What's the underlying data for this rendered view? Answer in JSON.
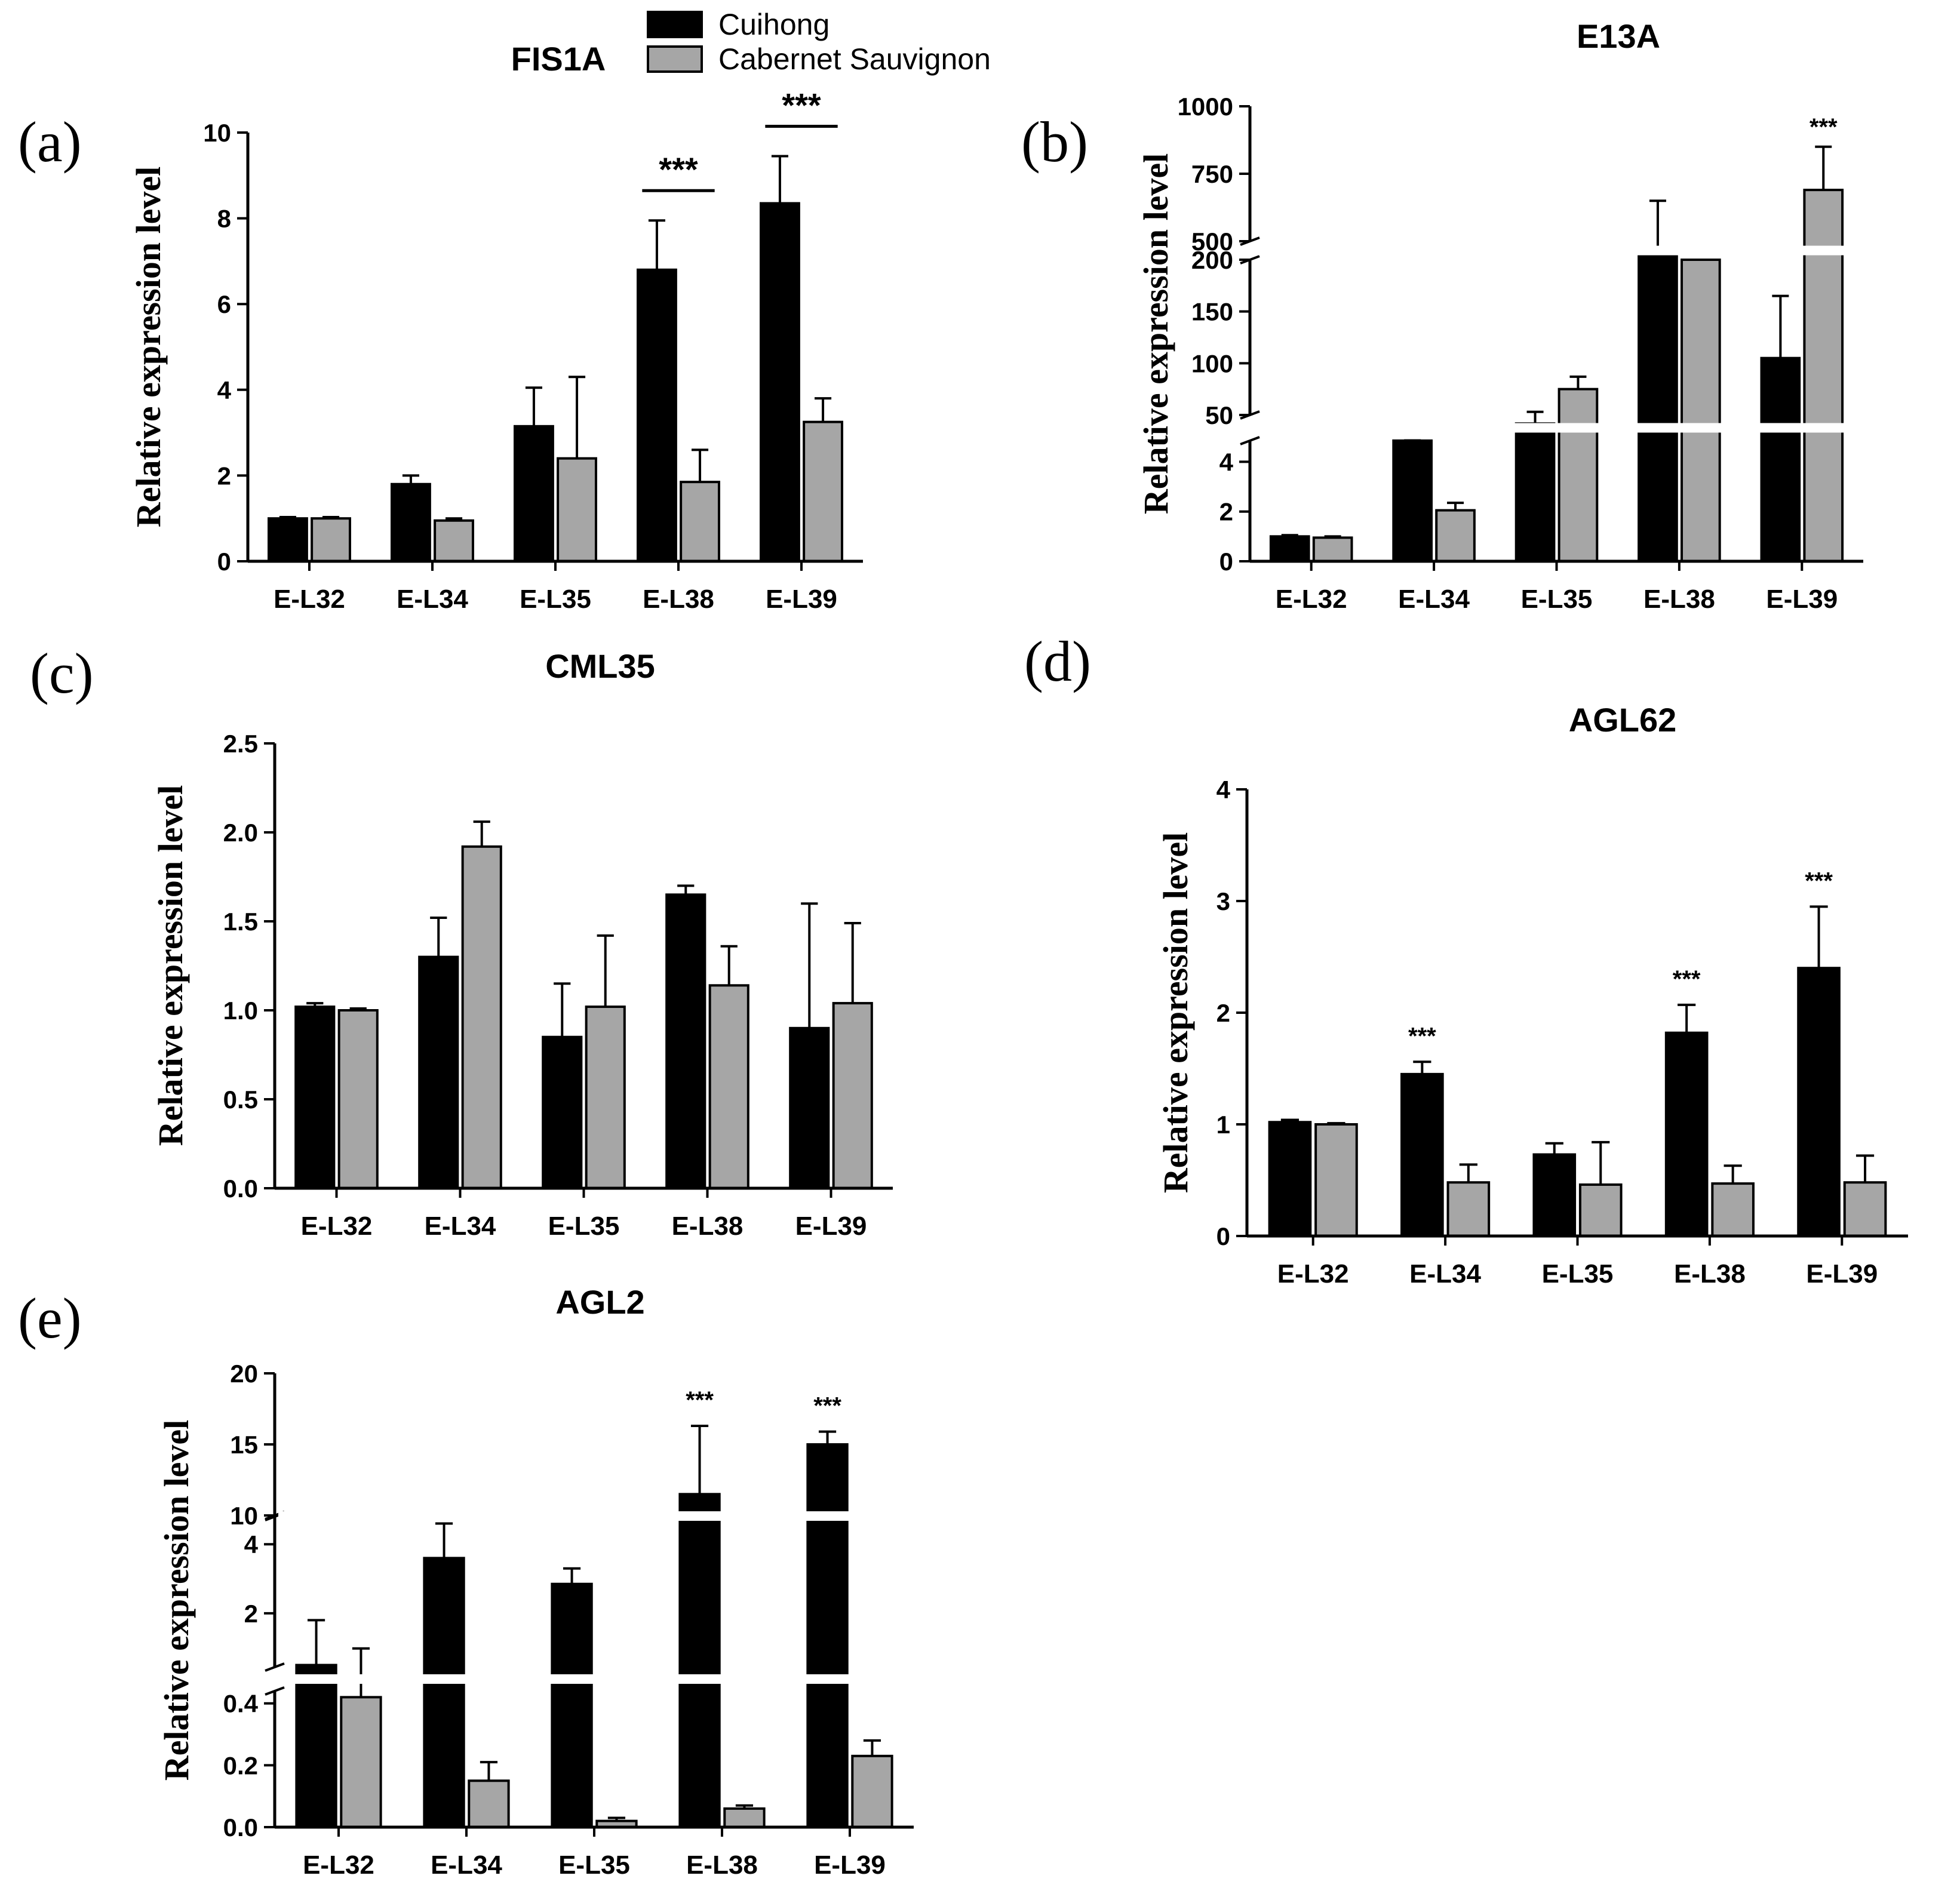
{
  "legend": {
    "series": [
      {
        "name": "Cuihong",
        "color": "#000000"
      },
      {
        "name": "Cabernet Sauvignon",
        "color": "#a6a6a6"
      }
    ]
  },
  "chart_data": [
    {
      "panel": "(a)",
      "type": "bar",
      "title": "FIS1A",
      "ylabel": "Relative expression level",
      "categories": [
        "E-L32",
        "E-L34",
        "E-L35",
        "E-L38",
        "E-L39"
      ],
      "ylim": [
        0,
        10
      ],
      "yticks": [
        0,
        2,
        4,
        6,
        8,
        10
      ],
      "series": [
        {
          "name": "Cuihong",
          "values": [
            1.0,
            1.8,
            3.15,
            6.8,
            8.35
          ],
          "errors": [
            0.03,
            0.2,
            0.9,
            1.15,
            1.1
          ]
        },
        {
          "name": "Cabernet Sauvignon",
          "values": [
            1.0,
            0.95,
            2.4,
            1.85,
            3.25
          ],
          "errors": [
            0.03,
            0.05,
            1.9,
            0.75,
            0.55
          ]
        }
      ],
      "annotations": [
        {
          "category": "E-L38",
          "text": "***",
          "style": "bracket"
        },
        {
          "category": "E-L39",
          "text": "***",
          "style": "bracket"
        }
      ]
    },
    {
      "panel": "(b)",
      "type": "bar",
      "title": "E13A",
      "ylabel": "Relative expression level",
      "categories": [
        "E-L32",
        "E-L34",
        "E-L35",
        "E-L38",
        "E-L39"
      ],
      "broken_axis": true,
      "ytick_labels": [
        "0",
        "2",
        "4",
        "50",
        "100",
        "150",
        "200",
        "500",
        "750",
        "1000"
      ],
      "series": [
        {
          "name": "Cuihong",
          "values": [
            1.0,
            4.9,
            35,
            400,
            105
          ],
          "errors": [
            0.05,
            0.3,
            18,
            250,
            60
          ]
        },
        {
          "name": "Cabernet Sauvignon",
          "values": [
            0.95,
            2.05,
            75,
            200,
            690
          ],
          "errors": [
            0.05,
            0.3,
            12,
            0,
            160
          ]
        }
      ],
      "annotations": [
        {
          "category": "E-L39",
          "text": "***",
          "style": "above"
        }
      ]
    },
    {
      "panel": "(c)",
      "type": "bar",
      "title": "CML35",
      "ylabel": "Relative expression level",
      "categories": [
        "E-L32",
        "E-L34",
        "E-L35",
        "E-L38",
        "E-L39"
      ],
      "ylim": [
        0,
        2.5
      ],
      "ytick_labels": [
        "0.0",
        "0.5",
        "1.0",
        "1.5",
        "2.0",
        "2.5"
      ],
      "yticks": [
        0,
        0.5,
        1.0,
        1.5,
        2.0,
        2.5
      ],
      "series": [
        {
          "name": "Cuihong",
          "values": [
            1.02,
            1.3,
            0.85,
            1.65,
            0.9
          ],
          "errors": [
            0.02,
            0.22,
            0.3,
            0.05,
            0.7
          ]
        },
        {
          "name": "Cabernet Sauvignon",
          "values": [
            1.0,
            1.92,
            1.02,
            1.14,
            1.04
          ],
          "errors": [
            0.01,
            0.14,
            0.4,
            0.22,
            0.45
          ]
        }
      ],
      "annotations": []
    },
    {
      "panel": "(d)",
      "type": "bar",
      "title": "AGL62",
      "ylabel": "Relative expression level",
      "categories": [
        "E-L32",
        "E-L34",
        "E-L35",
        "E-L38",
        "E-L39"
      ],
      "ylim": [
        0,
        4
      ],
      "yticks": [
        0,
        1,
        2,
        3,
        4
      ],
      "series": [
        {
          "name": "Cuihong",
          "values": [
            1.02,
            1.45,
            0.73,
            1.82,
            2.4
          ],
          "errors": [
            0.02,
            0.11,
            0.1,
            0.25,
            0.55
          ]
        },
        {
          "name": "Cabernet Sauvignon",
          "values": [
            1.0,
            0.48,
            0.46,
            0.47,
            0.48
          ],
          "errors": [
            0.01,
            0.16,
            0.38,
            0.16,
            0.24
          ]
        }
      ],
      "annotations": [
        {
          "category": "E-L34",
          "text": "***",
          "style": "above"
        },
        {
          "category": "E-L38",
          "text": "***",
          "style": "above"
        },
        {
          "category": "E-L39",
          "text": "***",
          "style": "above"
        }
      ]
    },
    {
      "panel": "(e)",
      "type": "bar",
      "title": "AGL2",
      "ylabel": "Relative expression level",
      "categories": [
        "E-L32",
        "E-L34",
        "E-L35",
        "E-L38",
        "E-L39"
      ],
      "broken_axis": true,
      "ytick_labels": [
        "0.0",
        "0.2",
        "0.4",
        "2",
        "4",
        "10",
        "15",
        "20"
      ],
      "series": [
        {
          "name": "Cuihong",
          "values": [
            0.5,
            3.6,
            2.85,
            11.5,
            15
          ],
          "errors": [
            1.3,
            1.0,
            0.45,
            4.8,
            0.9
          ]
        },
        {
          "name": "Cabernet Sauvignon",
          "values": [
            0.42,
            0.15,
            0.02,
            0.06,
            0.23
          ],
          "errors": [
            0.56,
            0.06,
            0.01,
            0.01,
            0.05
          ]
        }
      ],
      "annotations": [
        {
          "category": "E-L38",
          "text": "***",
          "style": "above"
        },
        {
          "category": "E-L39",
          "text": "***",
          "style": "above"
        }
      ]
    }
  ]
}
